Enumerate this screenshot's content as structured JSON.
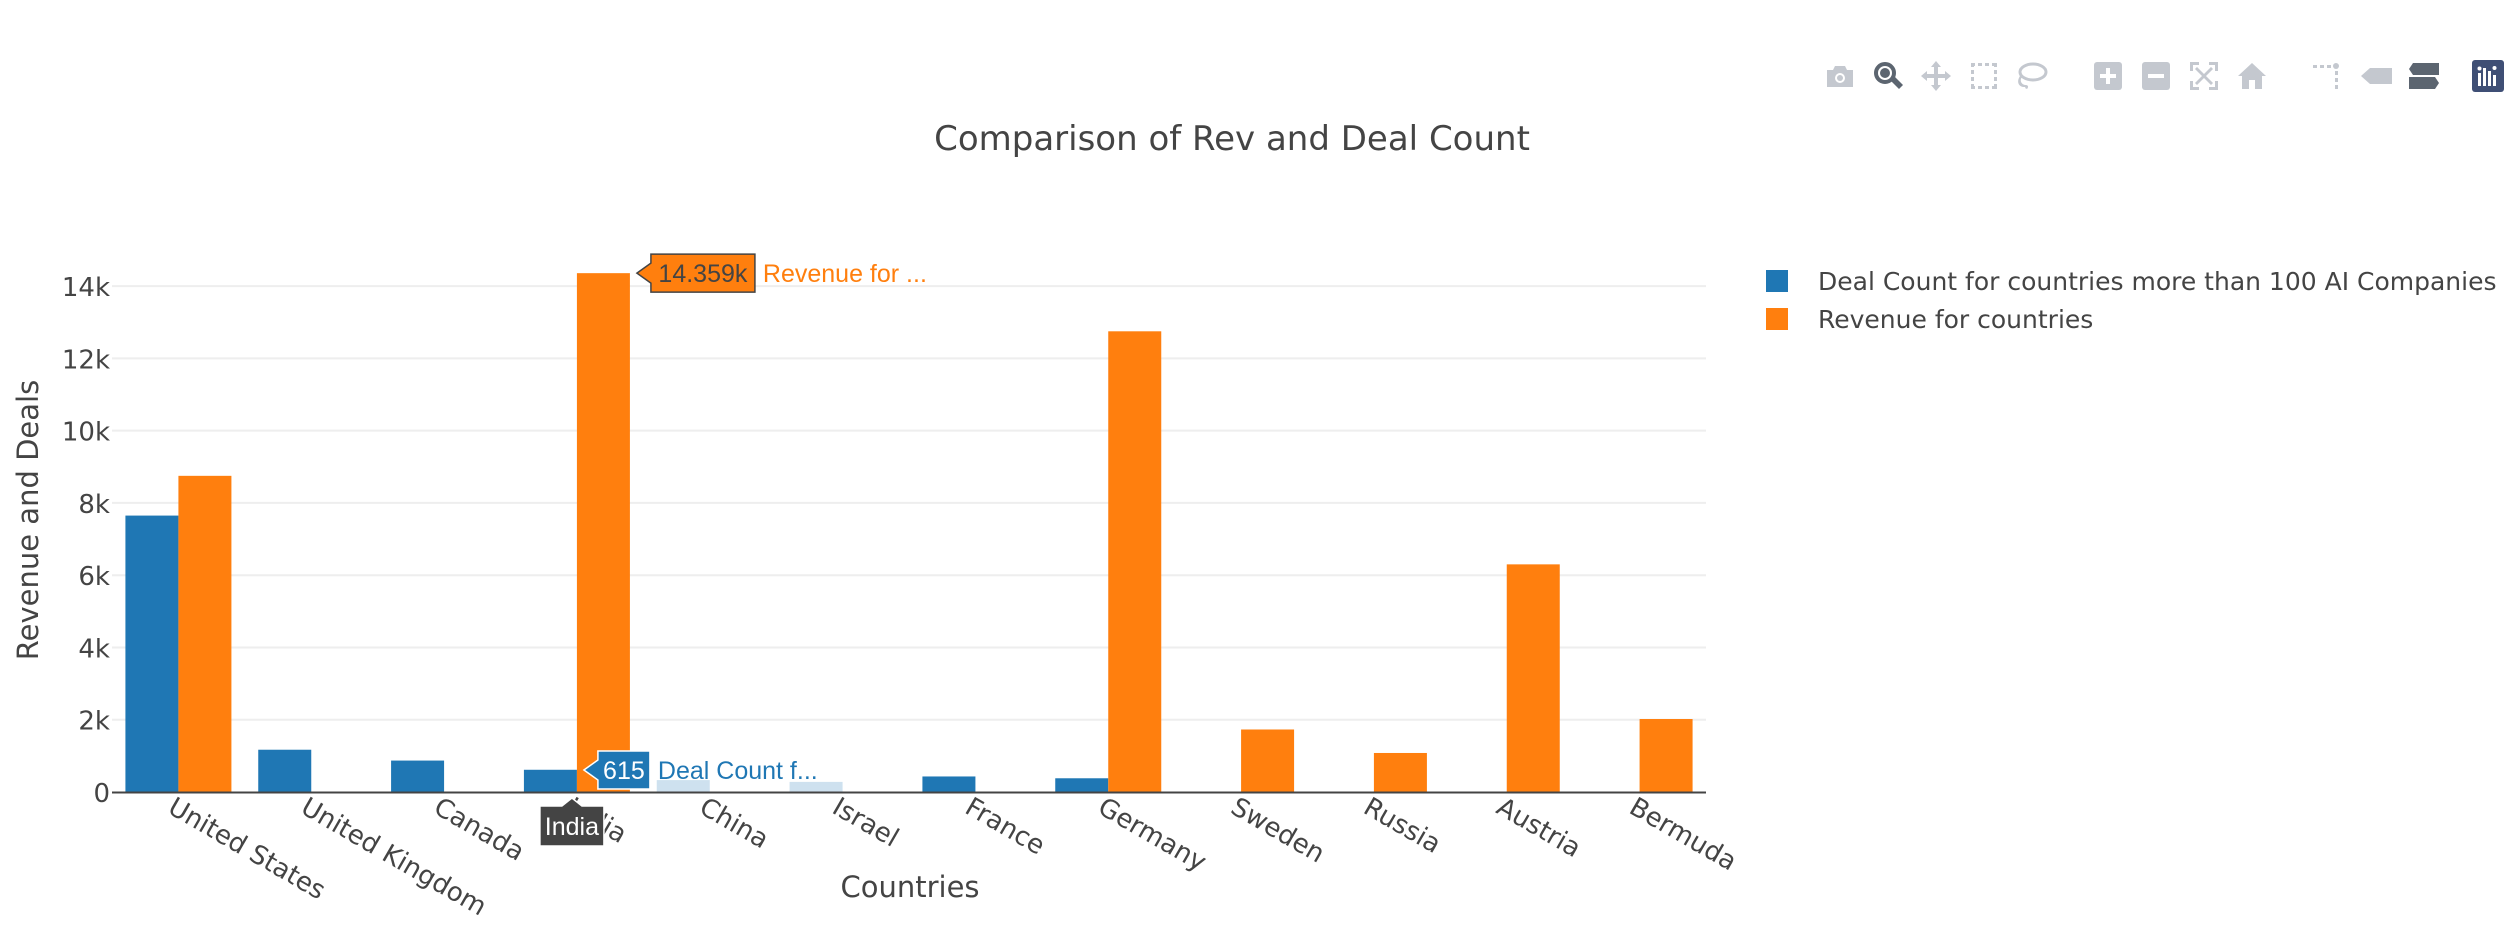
{
  "toolbar": {
    "buttons": [
      {
        "name": "camera-icon",
        "state": "inactive"
      },
      {
        "name": "zoom-icon",
        "state": "active"
      },
      {
        "name": "pan-icon",
        "state": "inactive"
      },
      {
        "name": "box-select-icon",
        "state": "inactive"
      },
      {
        "name": "lasso-select-icon",
        "state": "inactive"
      },
      {
        "name": "zoom-in-icon",
        "state": "inactive"
      },
      {
        "name": "zoom-out-icon",
        "state": "inactive"
      },
      {
        "name": "autoscale-icon",
        "state": "inactive"
      },
      {
        "name": "home-icon",
        "state": "inactive"
      },
      {
        "name": "spike-lines-icon",
        "state": "inactive"
      },
      {
        "name": "hover-closest-icon",
        "state": "inactive"
      },
      {
        "name": "hover-compare-icon",
        "state": "active"
      },
      {
        "name": "plotly-logo-icon",
        "state": "logo"
      }
    ]
  },
  "colors": {
    "deal": "#1f77b4",
    "revenue": "#ff7f0e",
    "axis_text": "#444444",
    "grid": "#eeeeee",
    "icon_inactive": "#c4c8cf",
    "icon_active": "#5c6570",
    "logo": "#3f4f75"
  },
  "chart_data": {
    "type": "bar",
    "title": "Comparison of Rev and Deal Count",
    "xlabel": "Countries",
    "ylabel": "Revenue and Deals",
    "categories": [
      "United States",
      "United Kingdom",
      "Canada",
      "India",
      "China",
      "Israel",
      "France",
      "Germany",
      "Sweden",
      "Russia",
      "Austria",
      "Bermuda"
    ],
    "series": [
      {
        "name": "Deal Count for countries more than 100 AI Companies",
        "values": [
          7650,
          1170,
          870,
          615,
          330,
          280,
          430,
          380,
          null,
          null,
          null,
          null
        ]
      },
      {
        "name": "Revenue for countries",
        "values": [
          8750,
          null,
          null,
          14359,
          null,
          null,
          null,
          12750,
          1730,
          1080,
          6300,
          2020
        ]
      }
    ],
    "ylim": [
      0,
      15000
    ],
    "yticks": [
      0,
      2000,
      4000,
      6000,
      8000,
      10000,
      12000,
      14000
    ],
    "yticklabels": [
      "0",
      "2k",
      "4k",
      "6k",
      "8k",
      "10k",
      "12k",
      "14k"
    ],
    "grid": true,
    "legend_position": "top-right",
    "hover": {
      "category": "India",
      "category_label": "India",
      "labels": [
        {
          "series": 1,
          "value_text": "14.359k",
          "name_text": "Revenue for ..."
        },
        {
          "series": 0,
          "value_text": "615",
          "name_text": "Deal Count f..."
        }
      ]
    }
  }
}
